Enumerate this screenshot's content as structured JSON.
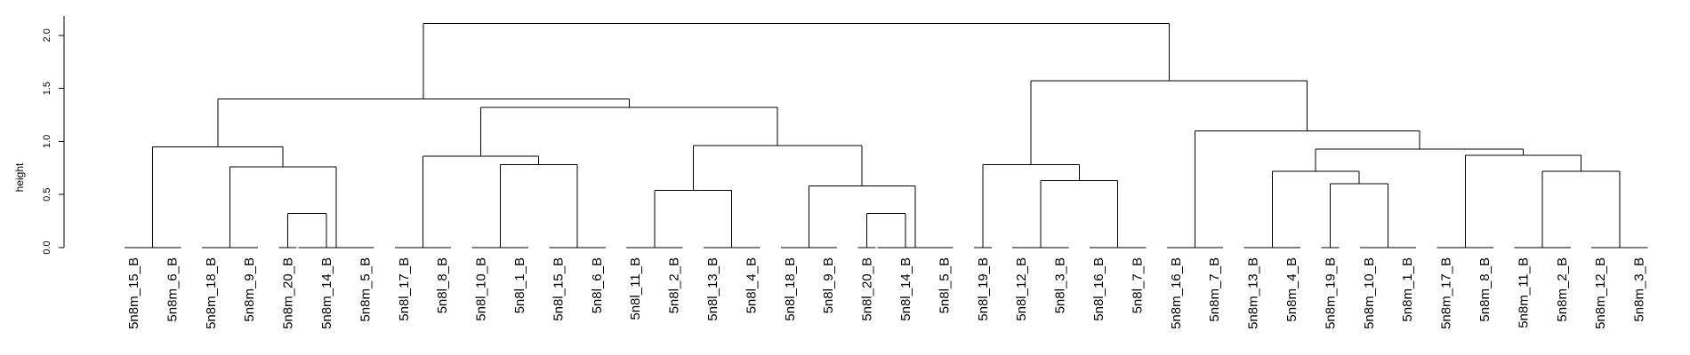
{
  "chart_data": {
    "type": "dendrogram",
    "title": "",
    "xlabel": "",
    "ylabel": "height",
    "ylim": [
      0,
      2.2
    ],
    "yticks": [
      "0.0",
      "0.5",
      "1.0",
      "1.5",
      "2.0"
    ],
    "grid": false,
    "legend": "none",
    "leaves": [
      "5n8m_15_B",
      "5n8m_6_B",
      "5n8m_18_B",
      "5n8m_9_B",
      "5n8m_20_B",
      "5n8m_14_B",
      "5n8m_5_B",
      "5n8l_17_B",
      "5n8l_8_B",
      "5n8l_10_B",
      "5n8l_1_B",
      "5n8l_15_B",
      "5n8l_6_B",
      "5n8l_11_B",
      "5n8l_2_B",
      "5n8l_13_B",
      "5n8l_4_B",
      "5n8l_18_B",
      "5n8l_9_B",
      "5n8l_20_B",
      "5n8l_14_B",
      "5n8l_5_B",
      "5n8l_19_B",
      "5n8l_12_B",
      "5n8l_3_B",
      "5n8l_16_B",
      "5n8l_7_B",
      "5n8m_16_B",
      "5n8m_7_B",
      "5n8m_13_B",
      "5n8m_4_B",
      "5n8m_19_B",
      "5n8m_10_B",
      "5n8m_1_B",
      "5n8m_17_B",
      "5n8m_8_B",
      "5n8m_11_B",
      "5n8m_2_B",
      "5n8m_12_B",
      "5n8m_3_B"
    ],
    "merges": [
      {
        "children": [
          "L0",
          "L1"
        ],
        "height": 0.95
      },
      {
        "children": [
          "L4",
          "L5"
        ],
        "height": 0.32
      },
      {
        "children": [
          "L3",
          "M1"
        ],
        "height": 0.76
      },
      {
        "children": [
          "L2",
          "M2"
        ],
        "height": 0.76
      },
      {
        "children": [
          "M3",
          "L6"
        ],
        "height": 0.76
      },
      {
        "children": [
          "M0",
          "M4"
        ],
        "height": 0.95
      },
      {
        "children": [
          "L10",
          "L11"
        ],
        "height": 0.78
      },
      {
        "children": [
          "L9",
          "M6"
        ],
        "height": 0.86
      },
      {
        "children": [
          "L7",
          "L8"
        ],
        "height": 0.86
      },
      {
        "children": [
          "M8",
          "M7"
        ],
        "height": 0.86
      },
      {
        "children": [
          "L13",
          "L14"
        ],
        "height": 0.54
      },
      {
        "children": [
          "L15",
          "L16"
        ],
        "height": 0.54
      },
      {
        "children": [
          "L19",
          "L20"
        ],
        "height": 0.32
      },
      {
        "children": [
          "L18",
          "M12"
        ],
        "height": 0.58
      },
      {
        "children": [
          "L17",
          "M13"
        ],
        "height": 0.58
      },
      {
        "children": [
          "M14",
          "L21"
        ],
        "height": 0.58
      },
      {
        "children": [
          "M10",
          "M11"
        ],
        "height": 0.54
      },
      {
        "children": [
          "M16",
          "M15"
        ],
        "height": 0.96
      },
      {
        "children": [
          "M9",
          "M17"
        ],
        "height": 1.32
      },
      {
        "children": [
          "L12",
          "L11"
        ],
        "height": 0.78
      },
      {
        "children": [
          "M5",
          "M18"
        ],
        "height": 1.4
      },
      {
        "children": [
          "L25",
          "L26"
        ],
        "height": 0.63
      },
      {
        "children": [
          "L24",
          "M21"
        ],
        "height": 0.63
      },
      {
        "children": [
          "L23",
          "M22"
        ],
        "height": 0.78
      },
      {
        "children": [
          "L22",
          "M23"
        ],
        "height": 0.78
      },
      {
        "children": [
          "L32",
          "L33"
        ],
        "height": 0.6
      },
      {
        "children": [
          "L31",
          "M25"
        ],
        "height": 0.6
      },
      {
        "children": [
          "L29",
          "L30"
        ],
        "height": 0.72
      },
      {
        "children": [
          "M27",
          "M26"
        ],
        "height": 0.72
      },
      {
        "children": [
          "L38",
          "L39"
        ],
        "height": 0.72
      },
      {
        "children": [
          "L37",
          "M29"
        ],
        "height": 0.72
      },
      {
        "children": [
          "L36",
          "M30"
        ],
        "height": 0.72
      },
      {
        "children": [
          "L34",
          "L35"
        ],
        "height": 0.87
      },
      {
        "children": [
          "M32",
          "M31"
        ],
        "height": 0.87
      },
      {
        "children": [
          "M28",
          "M33"
        ],
        "height": 0.93
      },
      {
        "children": [
          "L27",
          "L28"
        ],
        "height": 1.1
      },
      {
        "children": [
          "M35",
          "M34"
        ],
        "height": 1.1
      },
      {
        "children": [
          "M24",
          "M36"
        ],
        "height": 1.57
      },
      {
        "children": [
          "M20",
          "M37"
        ],
        "height": 2.11
      }
    ]
  }
}
